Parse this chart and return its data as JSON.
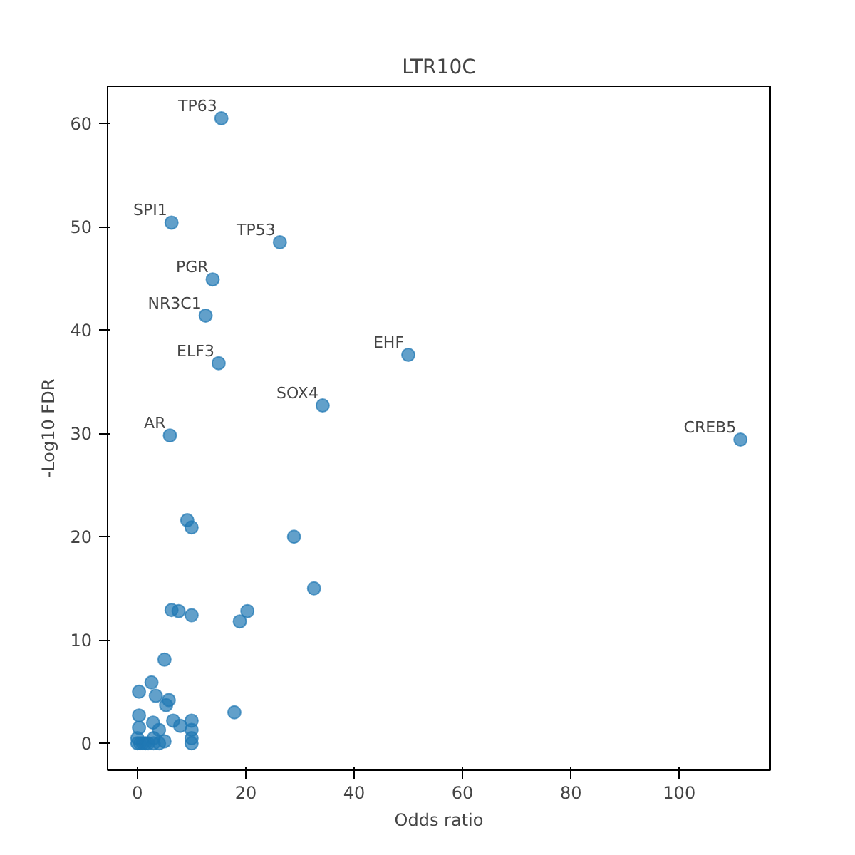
{
  "chart_data": {
    "type": "scatter",
    "title": "LTR10C",
    "xlabel": "Odds ratio",
    "ylabel": "-Log10 FDR",
    "x": [
      15.5,
      6.3,
      26.3,
      13.9,
      12.6,
      15.0,
      50.0,
      34.2,
      6.0,
      111.3,
      9.2,
      10.0,
      28.9,
      32.6,
      20.3,
      18.9,
      6.3,
      7.6,
      10.0,
      5.0,
      17.9,
      2.6,
      0.3,
      3.4,
      5.8,
      5.3,
      0.3,
      2.9,
      6.6,
      7.9,
      10.0,
      10.0,
      0.0,
      0.5,
      1.0,
      1.5,
      2.0,
      3.0,
      4.0,
      5.0,
      10.0,
      10.0,
      0.3,
      4.0,
      3.0,
      0.0
    ],
    "series": [
      {
        "color": "#1f77b4",
        "values": [
          60.5,
          50.4,
          48.5,
          44.9,
          41.4,
          36.8,
          37.6,
          32.7,
          29.8,
          29.4,
          21.6,
          20.9,
          20.0,
          15.0,
          12.8,
          11.8,
          12.9,
          12.8,
          12.4,
          8.1,
          3.0,
          5.9,
          5.0,
          4.6,
          4.2,
          3.7,
          2.7,
          2.0,
          2.2,
          1.7,
          2.2,
          1.3,
          0.0,
          0.0,
          0.0,
          0.0,
          0.0,
          0.0,
          0.0,
          0.2,
          0.0,
          0.5,
          1.5,
          1.3,
          0.5,
          0.5
        ]
      }
    ],
    "marker": "circle",
    "grid": false,
    "xlim": [
      -5.5,
      116.8
    ],
    "ylim": [
      -2.6,
      63.6
    ],
    "xticks": [
      0,
      20,
      40,
      60,
      80,
      100
    ],
    "yticks": [
      0,
      10,
      20,
      30,
      40,
      50,
      60
    ],
    "annotations": [
      {
        "text": "TP63",
        "x": 15.5,
        "y": 60.5
      },
      {
        "text": "SPI1",
        "x": 6.3,
        "y": 50.4
      },
      {
        "text": "TP53",
        "x": 26.3,
        "y": 48.5
      },
      {
        "text": "PGR",
        "x": 13.9,
        "y": 44.9
      },
      {
        "text": "NR3C1",
        "x": 12.6,
        "y": 41.4
      },
      {
        "text": "ELF3",
        "x": 15.0,
        "y": 36.8
      },
      {
        "text": "EHF",
        "x": 50.0,
        "y": 37.6
      },
      {
        "text": "SOX4",
        "x": 34.2,
        "y": 32.7
      },
      {
        "text": "AR",
        "x": 6.0,
        "y": 29.8
      },
      {
        "text": "CREB5",
        "x": 111.3,
        "y": 29.4
      }
    ]
  }
}
